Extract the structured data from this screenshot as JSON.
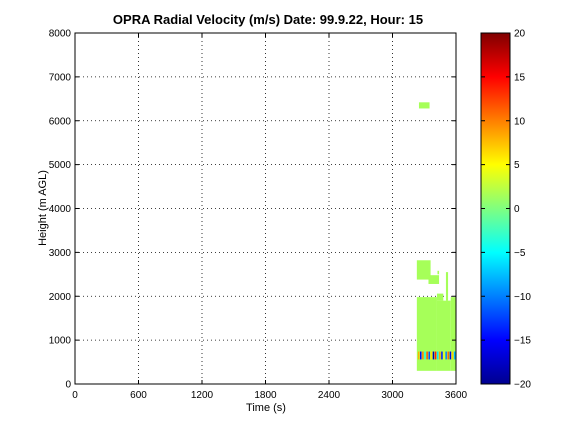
{
  "chart_data": {
    "type": "heatmap",
    "title": "OPRA Radial Velocity (m/s)  Date: 99.9.22, Hour: 15",
    "xlabel": "Time (s)",
    "ylabel": "Height (m AGL)",
    "xlim": [
      0,
      3600
    ],
    "ylim": [
      0,
      8000
    ],
    "x_ticks": [
      0,
      600,
      1200,
      1800,
      2400,
      3000,
      3600
    ],
    "y_ticks": [
      0,
      1000,
      2000,
      3000,
      4000,
      5000,
      6000,
      7000,
      8000
    ],
    "grid": true,
    "colormap": "jet",
    "colorbar": {
      "range": [
        -20,
        20
      ],
      "ticks": [
        -20,
        -15,
        -10,
        -5,
        0,
        5,
        10,
        15,
        20
      ],
      "tick_labels": [
        "−20",
        "−15",
        "−10",
        "−5",
        "0",
        "5",
        "10",
        "15",
        "20"
      ]
    },
    "velocity_cells": [
      {
        "t0": 3250,
        "t1": 3350,
        "h0": 6280,
        "h1": 6420,
        "v": 1.5
      },
      {
        "t0": 3230,
        "t1": 3360,
        "h0": 2380,
        "h1": 2820,
        "v": 1.5
      },
      {
        "t0": 3340,
        "t1": 3440,
        "h0": 2280,
        "h1": 2480,
        "v": 1.5
      },
      {
        "t0": 3230,
        "t1": 3420,
        "h0": 300,
        "h1": 1980,
        "v": 1.5
      },
      {
        "t0": 3420,
        "t1": 3550,
        "h0": 300,
        "h1": 1900,
        "v": 1.5
      },
      {
        "t0": 3550,
        "t1": 3600,
        "h0": 300,
        "h1": 1980,
        "v": 1.5
      },
      {
        "t0": 3420,
        "t1": 3480,
        "h0": 1900,
        "h1": 2060,
        "v": 1.5
      },
      {
        "t0": 3505,
        "t1": 3525,
        "h0": 1900,
        "h1": 2550,
        "v": 1.5
      },
      {
        "t0": 3425,
        "t1": 3440,
        "h0": 2500,
        "h1": 2580,
        "v": 1.5
      }
    ],
    "fine_cells": [
      {
        "t": 3240,
        "v": 8
      },
      {
        "t": 3260,
        "v": -15
      },
      {
        "t": 3280,
        "v": 10
      },
      {
        "t": 3300,
        "v": -4
      },
      {
        "t": 3320,
        "v": 12
      },
      {
        "t": 3340,
        "v": -12
      },
      {
        "t": 3360,
        "v": 6
      },
      {
        "t": 3380,
        "v": -18
      },
      {
        "t": 3400,
        "v": 14
      },
      {
        "t": 3420,
        "v": -6
      },
      {
        "t": 3440,
        "v": 9
      },
      {
        "t": 3460,
        "v": -14
      },
      {
        "t": 3480,
        "v": 4
      },
      {
        "t": 3500,
        "v": -10
      },
      {
        "t": 3520,
        "v": 11
      },
      {
        "t": 3540,
        "v": -16
      },
      {
        "t": 3560,
        "v": 7
      },
      {
        "t": 3580,
        "v": -8
      }
    ],
    "fine_band_heights": [
      560,
      740
    ]
  }
}
